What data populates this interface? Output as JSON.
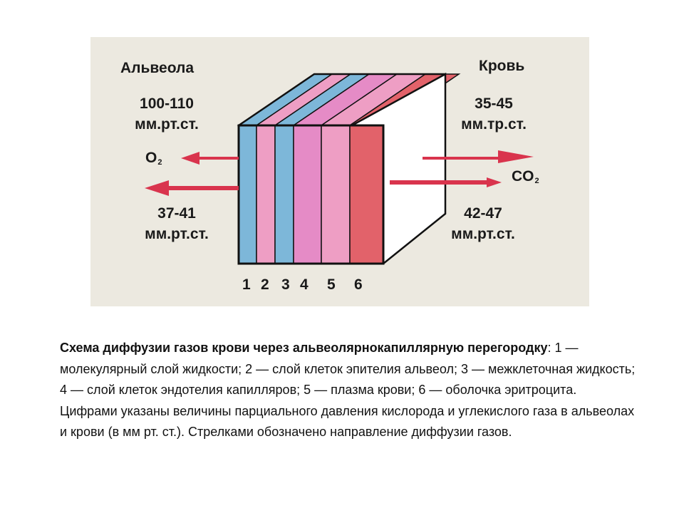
{
  "diagram": {
    "alveola_label": "Альвеола",
    "blood_label": "Кровь",
    "alveola_o2_pressure": {
      "value": "100-110",
      "unit": "мм.рт.ст."
    },
    "blood_o2_pressure": {
      "value": "35-45",
      "unit": "мм.тр.ст."
    },
    "alveola_co2_pressure": {
      "value": "37-41",
      "unit": "мм.рт.ст."
    },
    "blood_co2_pressure": {
      "value": "42-47",
      "unit": "мм.рт.ст."
    },
    "gas_o2": {
      "symbol": "O",
      "subscript": "2"
    },
    "gas_co2": {
      "symbol": "CO",
      "subscript": "2"
    },
    "layer_numbers": [
      "1",
      "2",
      "3",
      "4",
      "5",
      "6"
    ],
    "layer_colors": [
      "#7db7d9",
      "#ee9ec4",
      "#7db7d9",
      "#e58bc6",
      "#ee9ec4",
      "#e2626a"
    ],
    "arrow_color": "#d9344d"
  },
  "caption": {
    "title": "Схема диффузии газов крови через альвеолярнокапиллярную перегородку",
    "title_colon": ":",
    "body": "1 — молекулярный слой жидкости; 2 — слой клеток эпителия альвеол; 3 — межклеточная жидкость; 4 — слой клеток эндотелия капилляров; 5 — плазма крови; 6 — оболочка эритроцита. Цифрами указаны величины парциального давления кислорода и углекислого газа в альвеолах и крови (в мм рт. ст.). Стрелками обозначено направление диффузии газов."
  }
}
